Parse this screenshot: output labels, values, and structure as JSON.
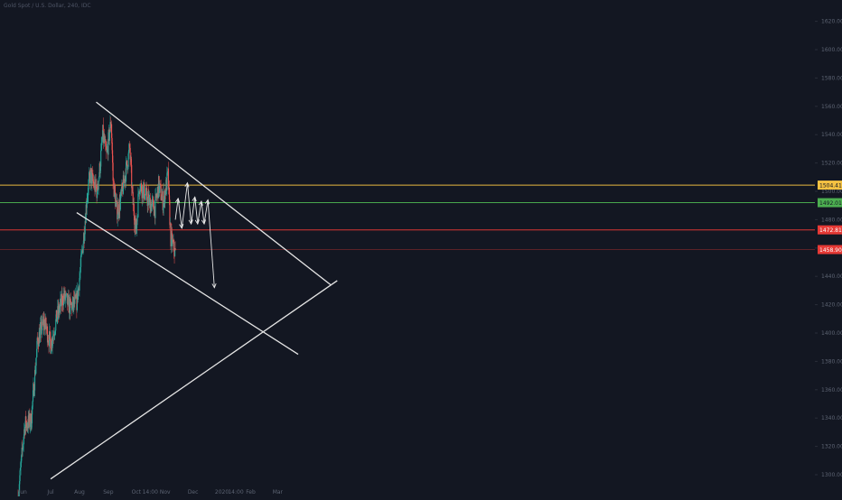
{
  "header": {
    "title": "Gold Spot / U.S. Dollar, 240, IDC"
  },
  "colors": {
    "background": "#131722",
    "up": "#26a69a",
    "down": "#ef5350",
    "drawing": "#e6e6e6",
    "axis_text": "#5d6473",
    "label_text": "#131722"
  },
  "chart_data": {
    "type": "candlestick",
    "title": "Gold Spot / U.S. Dollar, 240, IDC",
    "x_tick_labels": [
      "Jun",
      "Jul",
      "Aug",
      "Sep",
      "Oct",
      "14:00",
      "Nov",
      "Dec",
      "2020",
      "14:00",
      "Feb",
      "Mar"
    ],
    "y_tick_labels": [
      1300,
      1320,
      1340,
      1360,
      1380,
      1400,
      1420,
      1440,
      1460,
      1480,
      1500,
      1520,
      1540,
      1560,
      1580,
      1600,
      1620
    ],
    "ylim": [
      1290,
      1630
    ],
    "y_axis_side": "right",
    "grid": false,
    "price_levels": [
      {
        "label": "1504.41",
        "value": 1504.41,
        "color": "#f5c242"
      },
      {
        "label": "1492.01",
        "value": 1492.01,
        "color": "#4caf50"
      },
      {
        "label": "1472.81",
        "value": 1472.81,
        "color": "#e53935"
      },
      {
        "label": "1458.90",
        "value": 1458.9,
        "color": "#e53935"
      }
    ],
    "trendlines": [
      {
        "name": "upper channel line",
        "from": [
          "2019-08-19",
          1563
        ],
        "to": [
          "2020-04-27",
          1434
        ]
      },
      {
        "name": "lower channel line",
        "from": [
          "2019-07-29",
          1485
        ],
        "to": [
          "2020-03-23",
          1385
        ]
      },
      {
        "name": "long-term support",
        "from": [
          "2019-07-01",
          1297
        ],
        "to": [
          "2020-05-04",
          1437
        ]
      }
    ],
    "projection_path": [
      [
        "2019-11-12",
        1480
      ],
      [
        "2019-11-15",
        1495
      ],
      [
        "2019-11-19",
        1474
      ],
      [
        "2019-11-25",
        1506
      ],
      [
        "2019-11-29",
        1477
      ],
      [
        "2019-12-03",
        1496
      ],
      [
        "2019-12-06",
        1477
      ],
      [
        "2019-12-10",
        1493
      ],
      [
        "2019-12-13",
        1477
      ],
      [
        "2019-12-17",
        1494
      ],
      [
        "2019-12-24",
        1432
      ]
    ],
    "price_path_daily": [
      [
        "2019-05-27",
        1284
      ],
      [
        "2019-06-03",
        1335
      ],
      [
        "2019-06-10",
        1338
      ],
      [
        "2019-06-17",
        1395
      ],
      [
        "2019-06-24",
        1408
      ],
      [
        "2019-07-01",
        1392
      ],
      [
        "2019-07-08",
        1412
      ],
      [
        "2019-07-15",
        1426
      ],
      [
        "2019-07-22",
        1418
      ],
      [
        "2019-07-29",
        1422
      ],
      [
        "2019-08-02",
        1445
      ],
      [
        "2019-08-06",
        1472
      ],
      [
        "2019-08-09",
        1497
      ],
      [
        "2019-08-13",
        1512
      ],
      [
        "2019-08-16",
        1505
      ],
      [
        "2019-08-20",
        1500
      ],
      [
        "2019-08-23",
        1518
      ],
      [
        "2019-08-26",
        1540
      ],
      [
        "2019-08-30",
        1525
      ],
      [
        "2019-09-04",
        1550
      ],
      [
        "2019-09-06",
        1508
      ],
      [
        "2019-09-10",
        1486
      ],
      [
        "2019-09-13",
        1490
      ],
      [
        "2019-09-18",
        1508
      ],
      [
        "2019-09-24",
        1530
      ],
      [
        "2019-09-27",
        1494
      ],
      [
        "2019-10-01",
        1472
      ],
      [
        "2019-10-04",
        1505
      ],
      [
        "2019-10-09",
        1500
      ],
      [
        "2019-10-15",
        1492
      ],
      [
        "2019-10-21",
        1488
      ],
      [
        "2019-10-25",
        1504
      ],
      [
        "2019-10-30",
        1492
      ],
      [
        "2019-11-04",
        1511
      ],
      [
        "2019-11-07",
        1467
      ],
      [
        "2019-11-12",
        1456
      ]
    ]
  }
}
